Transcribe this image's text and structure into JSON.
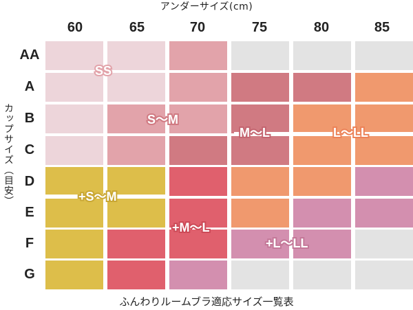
{
  "header": {
    "under_size_label": "アンダーサイズ(cm)",
    "columns": [
      "60",
      "65",
      "70",
      "75",
      "80",
      "85"
    ]
  },
  "side": {
    "cup_size_label": "カップサイズ（目安）",
    "rows": [
      "AA",
      "A",
      "B",
      "C",
      "D",
      "E",
      "F",
      "G"
    ]
  },
  "grid": {
    "cells": [
      [
        "pink-light",
        "pink-light",
        "pink-mid",
        "none",
        "none",
        "none"
      ],
      [
        "pink-light",
        "pink-light",
        "pink-mid",
        "rose",
        "rose",
        "orange"
      ],
      [
        "pink-light",
        "pink-mid",
        "pink-mid",
        "rose",
        "orange",
        "orange"
      ],
      [
        "pink-light",
        "pink-mid",
        "rose",
        "rose",
        "orange",
        "orange"
      ],
      [
        "yellow",
        "yellow",
        "red",
        "orange",
        "orange",
        "magenta"
      ],
      [
        "yellow",
        "yellow",
        "red",
        "orange",
        "magenta",
        "magenta"
      ],
      [
        "yellow",
        "red",
        "red",
        "magenta",
        "magenta",
        "none"
      ],
      [
        "yellow",
        "red",
        "magenta",
        "none",
        "none",
        "none"
      ]
    ]
  },
  "colors": {
    "pink-light": "#EDD5DA",
    "pink-mid": "#E2A3AA",
    "rose": "#D07A82",
    "orange": "#F0996E",
    "yellow": "#DDBE4A",
    "red": "#E0606D",
    "magenta": "#D38FAF",
    "none": "#E3E3E3"
  },
  "labels": {
    "ss": "SS",
    "s_m": "S〜M",
    "m_l": "M〜L",
    "l_ll": "L〜LL",
    "plus_s_m": "+S〜M",
    "plus_m_l": "+M〜L",
    "plus_l_ll": "+L〜LL"
  },
  "footer": {
    "title": "ふんわりルームブラ適応サイズ一覧表"
  }
}
